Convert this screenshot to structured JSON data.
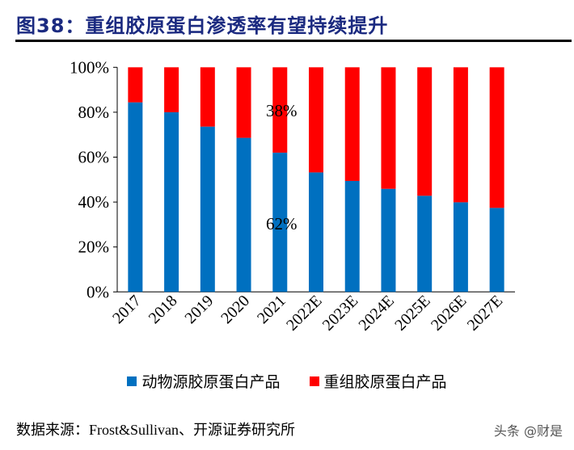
{
  "title": "图38：重组胶原蛋白渗透率有望持续提升",
  "source": "数据来源：Frost&Sullivan、开源证券研究所",
  "watermark": "头条 @财是",
  "chart_data": {
    "type": "bar",
    "stacked": true,
    "categories": [
      "2017",
      "2018",
      "2019",
      "2020",
      "2021",
      "2022E",
      "2023E",
      "2024E",
      "2025E",
      "2026E",
      "2027E"
    ],
    "series": [
      {
        "name": "动物源胶原蛋白产品",
        "color": "#0070c0",
        "values": [
          84.4,
          80,
          73.6,
          68.6,
          62,
          53.2,
          49.4,
          45.9,
          42.8,
          39.9,
          37.4
        ]
      },
      {
        "name": "重组胶原蛋白产品",
        "color": "#ff0000",
        "values": [
          15.6,
          20,
          26.4,
          31.4,
          38,
          46.8,
          50.6,
          54.1,
          57.2,
          60.1,
          62.6
        ]
      }
    ],
    "ylim": [
      0,
      100
    ],
    "yticks": [
      "0%",
      "20%",
      "40%",
      "60%",
      "80%",
      "100%"
    ],
    "annotations": [
      "38%",
      "62%"
    ],
    "legend": "bottom",
    "grid": false
  }
}
